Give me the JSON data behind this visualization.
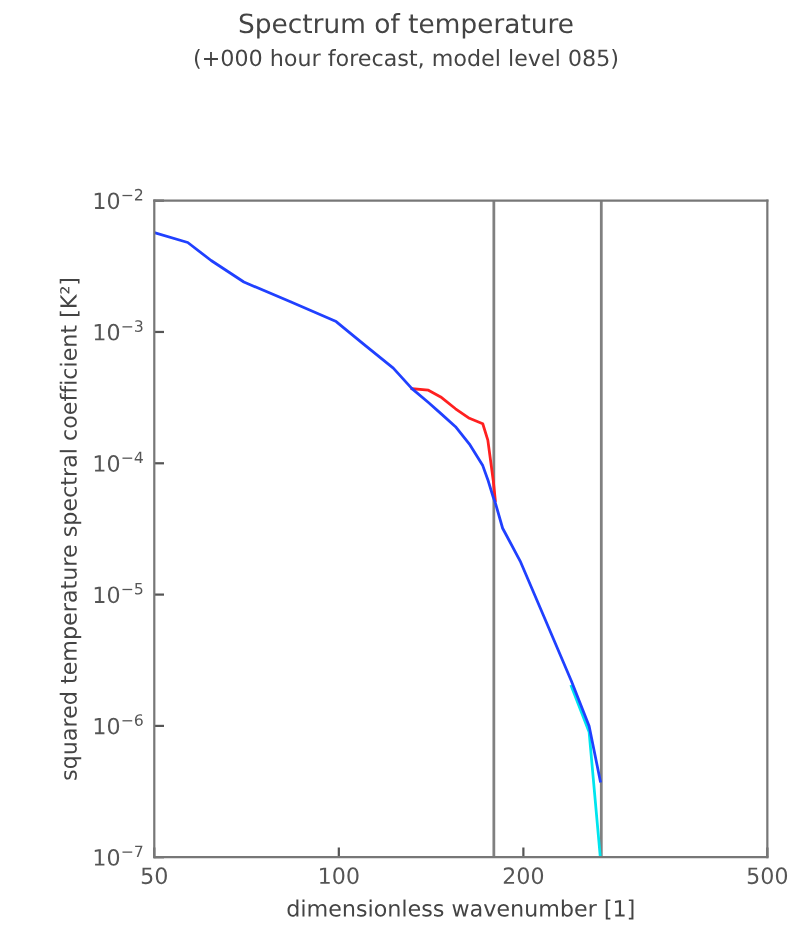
{
  "chart_data": {
    "type": "line",
    "title": "Spectrum of temperature",
    "subtitle": "(+000 hour forecast, model level 085)",
    "xlabel": "dimensionless wavenumber [1]",
    "ylabel": "squared temperature spectral coefficient [K²]",
    "x": [
      50,
      56.7,
      61.9,
      70,
      83.4,
      99,
      110,
      122.7,
      131.6,
      140,
      146.6,
      155,
      163.3,
      171.7,
      175,
      178.6,
      180,
      185,
      197.6,
      215.5,
      239.5,
      256,
      267
    ],
    "series": [
      {
        "color": "#00e5ee",
        "values": [
          null,
          null,
          null,
          null,
          null,
          null,
          null,
          null,
          null,
          null,
          null,
          null,
          null,
          null,
          null,
          null,
          null,
          null,
          null,
          null,
          2e-06,
          9e-07,
          1e-07
        ]
      },
      {
        "color": "#ff2020",
        "values": [
          null,
          null,
          null,
          null,
          null,
          null,
          null,
          null,
          0.00037,
          0.00036,
          0.00032,
          0.00026,
          0.00022,
          0.0002,
          0.00015,
          7.4e-05,
          5.2e-05,
          null,
          null,
          null,
          null,
          null,
          null
        ]
      },
      {
        "color": "#2040ff",
        "values": [
          0.0057,
          0.0048,
          0.0035,
          0.0024,
          0.0017,
          0.0012,
          0.0008,
          0.00053,
          0.00037,
          0.00029,
          0.00024,
          0.00019,
          0.00014,
          9.6e-05,
          7.5e-05,
          5.5e-05,
          5e-05,
          3.2e-05,
          1.8e-05,
          7e-06,
          2.2e-06,
          1e-06,
          3.8e-07
        ]
      }
    ],
    "log": "xy",
    "xlim": [
      50,
      500
    ],
    "xticks": [
      50,
      100,
      200,
      500
    ],
    "ylim": [
      1e-07,
      0.01
    ],
    "yticks": [
      {
        "value": 1e-07,
        "label": "10$^{−7}$"
      },
      {
        "value": 1e-06,
        "label": "10$^{−6}$"
      },
      {
        "value": 1e-05,
        "label": "10$^{−5}$"
      },
      {
        "value": 0.0001,
        "label": "10$^{−4}$"
      },
      {
        "value": 0.001,
        "label": "10$^{−3}$"
      },
      {
        "value": 0.01,
        "label": "10$^{−2}$"
      }
    ],
    "ref_lines": [
      {
        "axis": "x",
        "value": 179,
        "color": "#808080"
      },
      {
        "axis": "x",
        "value": 268,
        "color": "#808080"
      }
    ],
    "grid": false,
    "legend": false
  }
}
